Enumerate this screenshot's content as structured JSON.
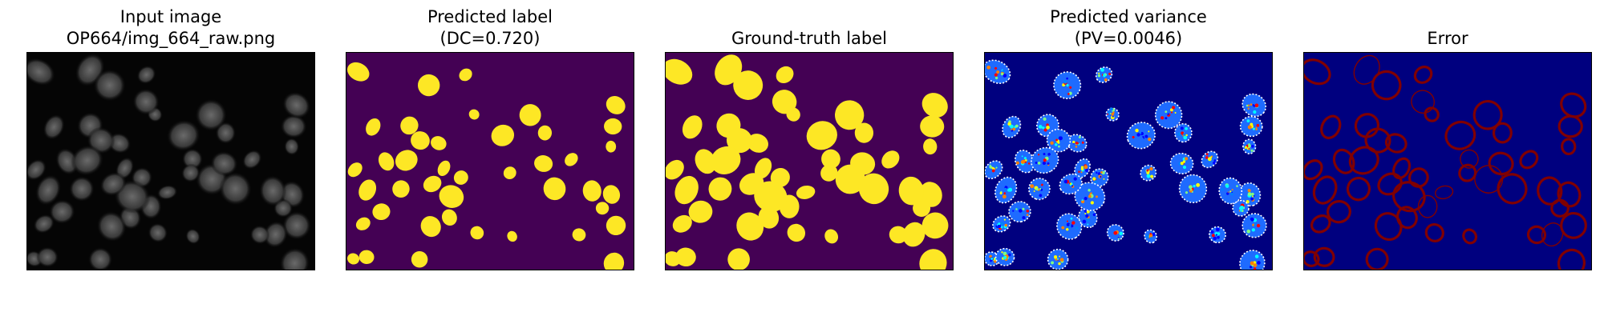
{
  "panels": [
    {
      "title_line1": "Input image",
      "title_line2": "OP664/img_664_raw.png",
      "image": "grayscale fluorescence microscopy of cell nuclei"
    },
    {
      "title_line1": "Predicted label",
      "title_line2": "(DC=0.720)",
      "image": "yellow segmentation masks on purple background"
    },
    {
      "title_line1": "",
      "title_line2": "Ground-truth label",
      "image": "yellow ground-truth masks on purple background"
    },
    {
      "title_line1": "Predicted variance",
      "title_line2": "(PV=0.0046)",
      "image": "jet-colored variance map on dark blue background"
    },
    {
      "title_line1": "",
      "title_line2": "Error",
      "image": "dark red error contours on dark blue background"
    }
  ],
  "colors": {
    "purple_bg": "#440154",
    "mask_yellow": "#fde725",
    "jet_bg": "#00007f",
    "error_red": "#800000",
    "gray_bg": "#050505"
  }
}
